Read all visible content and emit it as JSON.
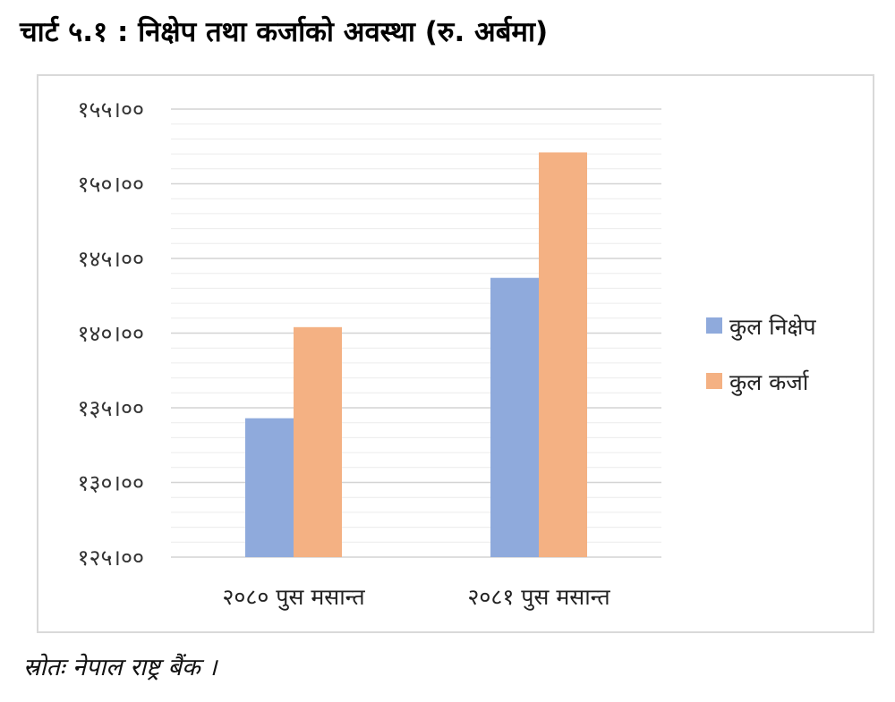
{
  "title": "चार्ट ५.१ : निक्षेप तथा कर्जाको अवस्था (रु. अर्बमा)",
  "source": "स्रोतः नेपाल राष्ट्र बैंक ।",
  "chart_data": {
    "type": "bar",
    "categories": [
      "२०८० पुस मसान्त",
      "२०८१ पुस मसान्त"
    ],
    "series": [
      {
        "name": "कुल निक्षेप",
        "values": [
          134400,
          143800
        ],
        "color": "#8faadc"
      },
      {
        "name": "कुल कर्जा",
        "values": [
          140500,
          152200
        ],
        "color": "#f4b183"
      }
    ],
    "ylim": [
      125100,
      155100
    ],
    "yticks": [
      125100,
      130100,
      135100,
      140100,
      145100,
      150100,
      155100
    ],
    "ytick_labels": [
      "१२५।००",
      "१३०।००",
      "१३५।००",
      "१४०।००",
      "१४५।००",
      "१५०।००",
      "१५५।००"
    ],
    "minor_grid_step": 1000,
    "grid": true,
    "legend_position": "right"
  }
}
